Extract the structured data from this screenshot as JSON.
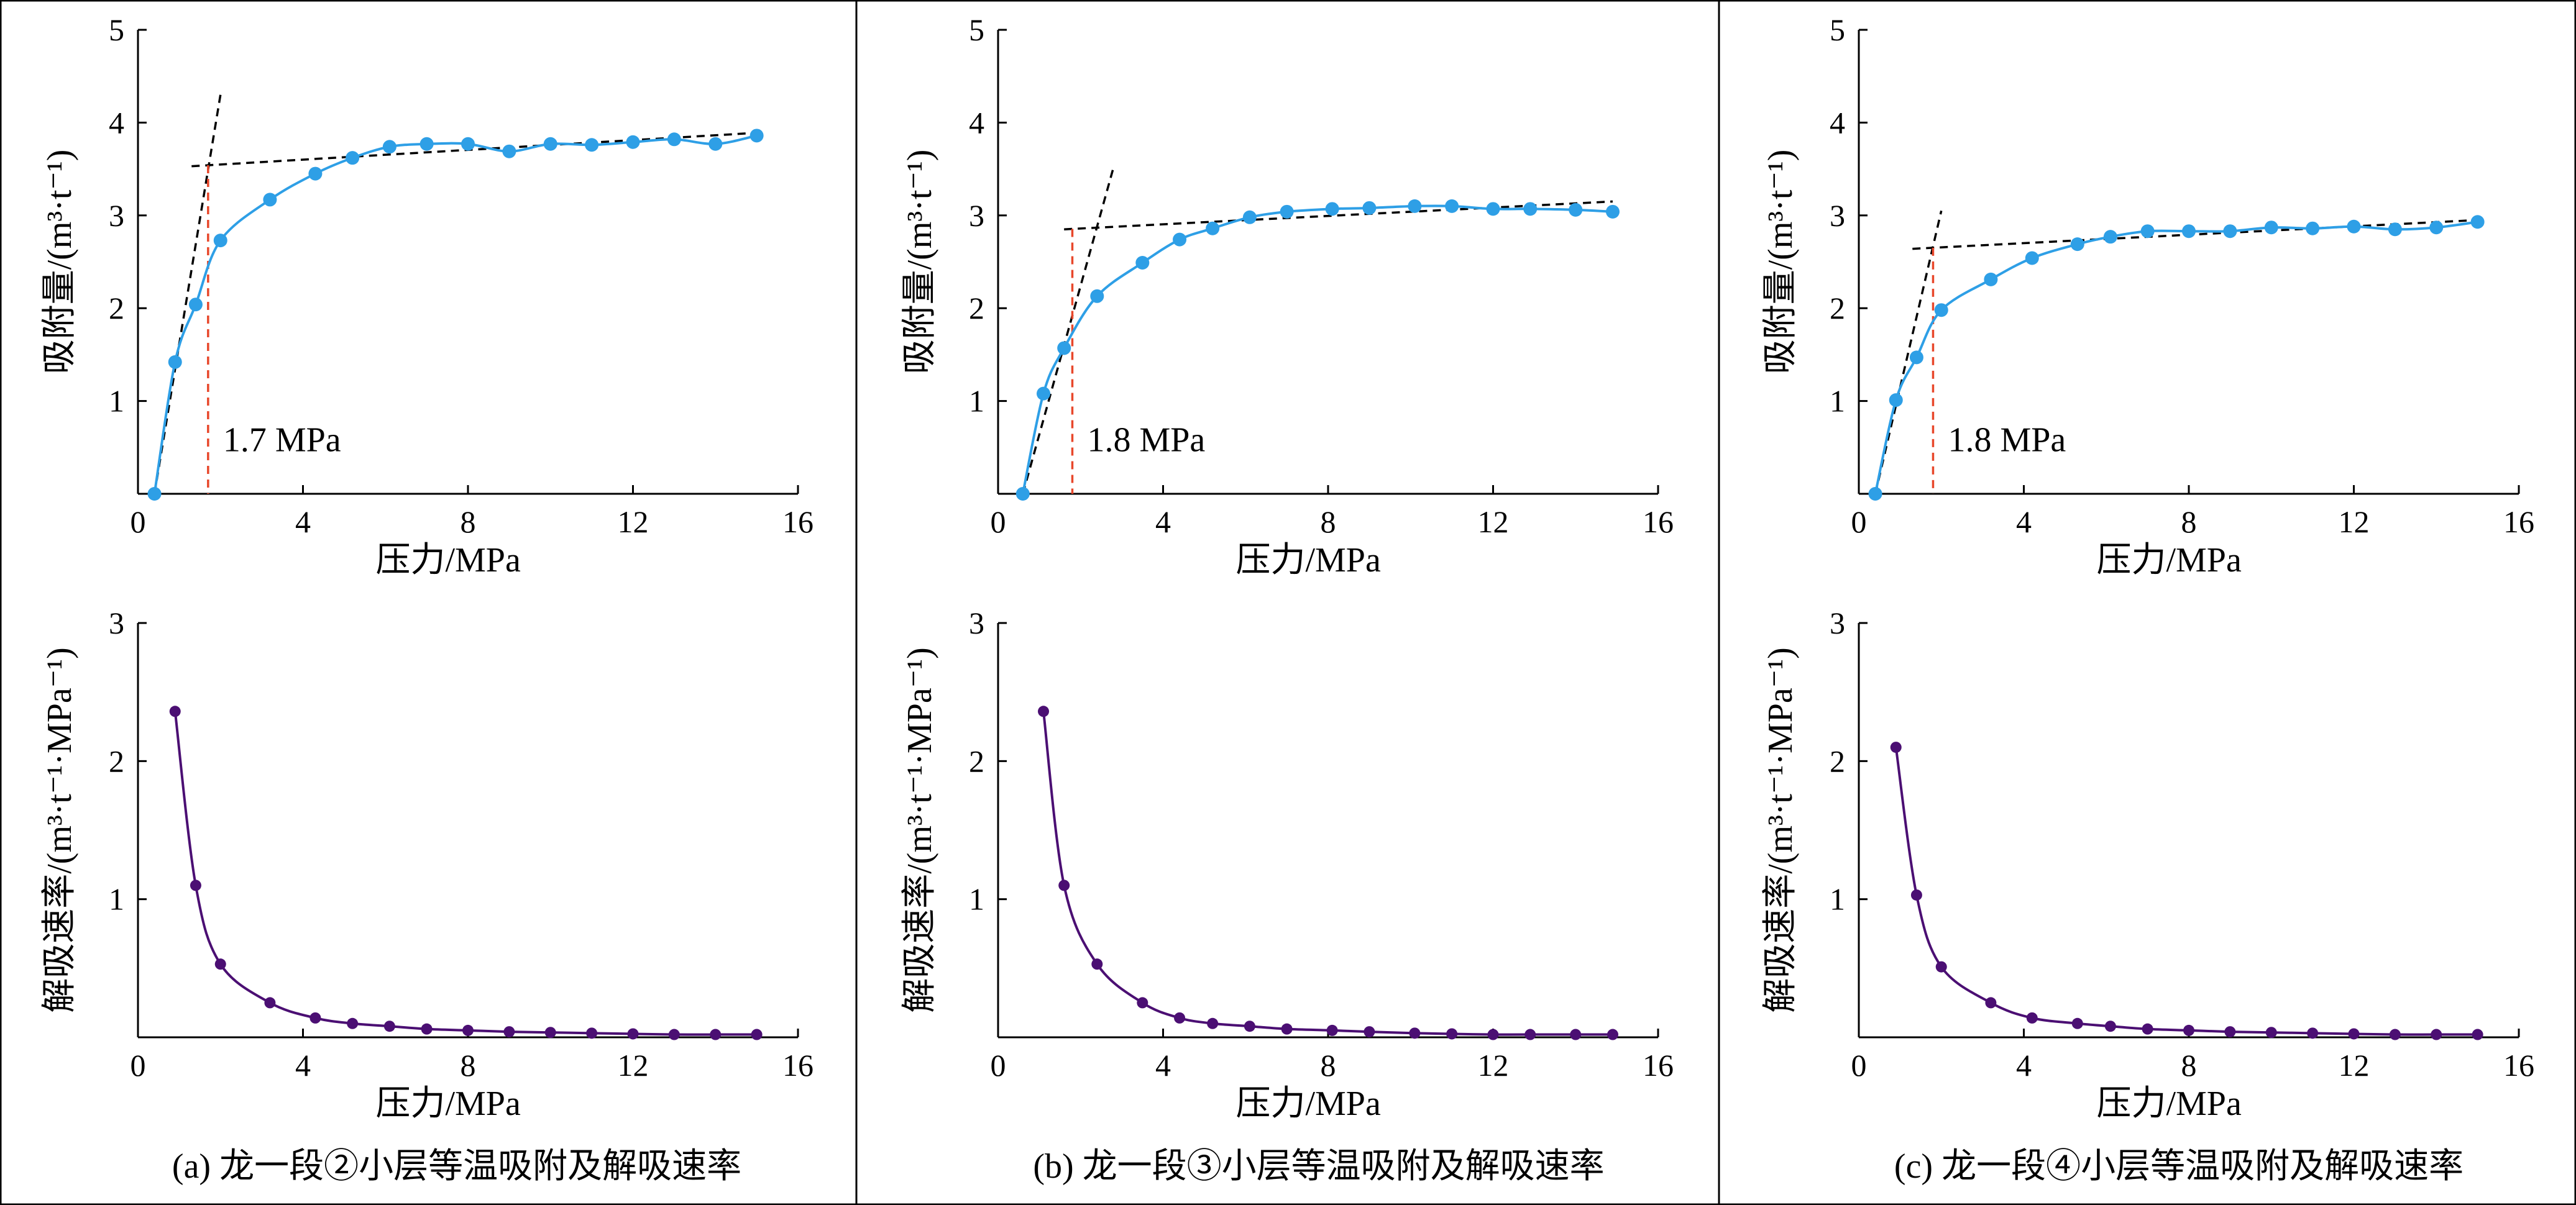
{
  "panels": [
    {
      "caption": "(a) 龙一段②小层等温吸附及解吸速率",
      "annotation": "1.7 MPa"
    },
    {
      "caption": "(b) 龙一段③小层等温吸附及解吸速率",
      "annotation": "1.8 MPa"
    },
    {
      "caption": "(c) 龙一段④小层等温吸附及解吸速率",
      "annotation": "1.8 MPa"
    }
  ],
  "axes": {
    "top_xlabel": "压力/MPa",
    "top_ylabel": "吸附量/(m³·t⁻¹)",
    "bottom_xlabel": "压力/MPa",
    "bottom_ylabel": "解吸速率/(m³·t⁻¹·MPa⁻¹)",
    "x_ticks": [
      "0",
      "4",
      "8",
      "12",
      "16"
    ],
    "top_y_ticks": [
      "1",
      "2",
      "3",
      "4",
      "5"
    ],
    "bottom_y_ticks": [
      "1",
      "2",
      "3"
    ]
  },
  "colors": {
    "adsorption": "#2e9fe6",
    "desorption": "#4b0f73",
    "tangent": "#000000",
    "critical": "#e8472b"
  },
  "chart_data": [
    {
      "type": "scatter",
      "panel": "a-top",
      "xlabel": "压力/MPa",
      "ylabel": "吸附量/(m³·t⁻¹)",
      "xlim": [
        0,
        16
      ],
      "ylim": [
        0,
        5
      ],
      "series": [
        {
          "x": [
            0.4,
            0.9,
            1.4,
            2.0,
            3.2,
            4.3,
            5.2,
            6.1,
            7.0,
            8.0,
            9.0,
            10.0,
            11.0,
            12.0,
            13.0,
            14.0,
            15.0
          ],
          "y": [
            0,
            1.42,
            2.04,
            2.73,
            3.17,
            3.45,
            3.62,
            3.74,
            3.77,
            3.77,
            3.69,
            3.77,
            3.76,
            3.79,
            3.82,
            3.77,
            3.86
          ]
        }
      ],
      "tangent_lines": [
        {
          "x": [
            0.4,
            2.0
          ],
          "y": [
            0,
            4.3
          ]
        },
        {
          "x": [
            1.3,
            15.0
          ],
          "y": [
            3.53,
            3.89
          ]
        }
      ],
      "critical_pressure": 1.7
    },
    {
      "type": "scatter",
      "panel": "b-top",
      "xlabel": "压力/MPa",
      "ylabel": "吸附量/(m³·t⁻¹)",
      "xlim": [
        0,
        16
      ],
      "ylim": [
        0,
        5
      ],
      "series": [
        {
          "x": [
            0.6,
            1.1,
            1.6,
            2.4,
            3.5,
            4.4,
            5.2,
            6.1,
            7.0,
            8.1,
            9.0,
            10.1,
            11.0,
            12.0,
            12.9,
            14.0,
            14.9
          ],
          "y": [
            0,
            1.08,
            1.57,
            2.13,
            2.49,
            2.74,
            2.86,
            2.98,
            3.04,
            3.07,
            3.08,
            3.1,
            3.1,
            3.07,
            3.07,
            3.06,
            3.04
          ]
        }
      ],
      "tangent_lines": [
        {
          "x": [
            0.6,
            2.8
          ],
          "y": [
            0,
            3.52
          ]
        },
        {
          "x": [
            1.6,
            14.9
          ],
          "y": [
            2.85,
            3.15
          ]
        }
      ],
      "critical_pressure": 1.8
    },
    {
      "type": "scatter",
      "panel": "c-top",
      "xlabel": "压力/MPa",
      "ylabel": "吸附量/(m³·t⁻¹)",
      "xlim": [
        0,
        16
      ],
      "ylim": [
        0,
        5
      ],
      "series": [
        {
          "x": [
            0.4,
            0.9,
            1.4,
            2.0,
            3.2,
            4.2,
            5.3,
            6.1,
            7.0,
            8.0,
            9.0,
            10.0,
            11.0,
            12.0,
            13.0,
            14.0,
            15.0
          ],
          "y": [
            0,
            1.01,
            1.47,
            1.98,
            2.31,
            2.54,
            2.69,
            2.77,
            2.83,
            2.83,
            2.83,
            2.87,
            2.86,
            2.88,
            2.85,
            2.87,
            2.93
          ]
        }
      ],
      "tangent_lines": [
        {
          "x": [
            0.4,
            2.0
          ],
          "y": [
            0,
            3.05
          ]
        },
        {
          "x": [
            1.3,
            15.0
          ],
          "y": [
            2.64,
            2.95
          ]
        }
      ],
      "critical_pressure": 1.8
    },
    {
      "type": "line",
      "panel": "a-bottom",
      "xlabel": "压力/MPa",
      "ylabel": "解吸速率/(m³·t⁻¹·MPa⁻¹)",
      "xlim": [
        0,
        16
      ],
      "ylim": [
        0,
        3
      ],
      "series": [
        {
          "x": [
            0.9,
            1.4,
            2.0,
            3.2,
            4.3,
            5.2,
            6.1,
            7.0,
            8.0,
            9.0,
            10.0,
            11.0,
            12.0,
            13.0,
            14.0,
            15.0
          ],
          "y": [
            2.36,
            1.1,
            0.53,
            0.25,
            0.14,
            0.1,
            0.08,
            0.06,
            0.05,
            0.04,
            0.035,
            0.03,
            0.025,
            0.02,
            0.02,
            0.02
          ]
        }
      ]
    },
    {
      "type": "line",
      "panel": "b-bottom",
      "xlabel": "压力/MPa",
      "ylabel": "解吸速率/(m³·t⁻¹·MPa⁻¹)",
      "xlim": [
        0,
        16
      ],
      "ylim": [
        0,
        3
      ],
      "series": [
        {
          "x": [
            1.1,
            1.6,
            2.4,
            3.5,
            4.4,
            5.2,
            6.1,
            7.0,
            8.1,
            9.0,
            10.1,
            11.0,
            12.0,
            12.9,
            14.0,
            14.9
          ],
          "y": [
            2.36,
            1.1,
            0.53,
            0.25,
            0.14,
            0.1,
            0.08,
            0.06,
            0.05,
            0.04,
            0.03,
            0.025,
            0.02,
            0.02,
            0.02,
            0.02
          ]
        }
      ]
    },
    {
      "type": "line",
      "panel": "c-bottom",
      "xlabel": "压力/MPa",
      "ylabel": "解吸速率/(m³·t⁻¹·MPa⁻¹)",
      "xlim": [
        0,
        16
      ],
      "ylim": [
        0,
        3
      ],
      "series": [
        {
          "x": [
            0.9,
            1.4,
            2.0,
            3.2,
            4.2,
            5.3,
            6.1,
            7.0,
            8.0,
            9.0,
            10.0,
            11.0,
            12.0,
            13.0,
            14.0,
            15.0
          ],
          "y": [
            2.1,
            1.03,
            0.51,
            0.25,
            0.14,
            0.1,
            0.08,
            0.06,
            0.05,
            0.04,
            0.035,
            0.03,
            0.025,
            0.02,
            0.02,
            0.02
          ]
        }
      ]
    }
  ]
}
